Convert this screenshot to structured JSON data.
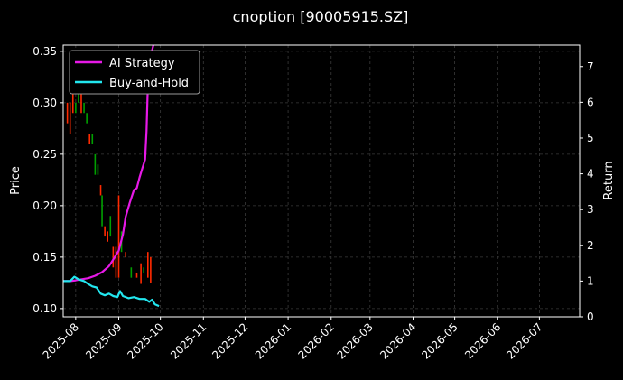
{
  "chart_data": {
    "type": "line",
    "title": "cnoption [90005915.SZ]",
    "ylabel_left": "Price",
    "ylabel_right": "Return",
    "ylim_left": [
      0.092,
      0.356
    ],
    "ylim_right": [
      0,
      7.6
    ],
    "yticks_left": [
      0.1,
      0.15,
      0.2,
      0.25,
      0.3,
      0.35
    ],
    "yticks_left_labels": [
      "0.10",
      "0.15",
      "0.20",
      "0.25",
      "0.30",
      "0.35"
    ],
    "yticks_right": [
      0,
      1,
      2,
      3,
      4,
      5,
      6,
      7
    ],
    "yticks_right_labels": [
      "0",
      "1",
      "2",
      "3",
      "4",
      "5",
      "6",
      "7"
    ],
    "xlim": [
      "2025-07-23",
      "2026-07-30"
    ],
    "xticks": [
      "2025-08-01",
      "2025-09-01",
      "2025-10-01",
      "2025-11-01",
      "2025-12-01",
      "2026-01-01",
      "2026-02-01",
      "2026-03-01",
      "2026-04-01",
      "2026-05-01",
      "2026-06-01",
      "2026-07-01"
    ],
    "xticks_labels": [
      "2025-08",
      "2025-09",
      "2025-10",
      "2025-11",
      "2025-12",
      "2026-01",
      "2026-02",
      "2026-03",
      "2026-04",
      "2026-05",
      "2026-06",
      "2026-07"
    ],
    "grid": true,
    "legend_position": "top-left",
    "colors": {
      "up": "#00a000",
      "down": "#ff2a00",
      "strategy": "#e619e6",
      "buyhold": "#22e6ee",
      "grid": "#3a3a3a",
      "axes": "#ffffff"
    },
    "series": [
      {
        "name": "AI Strategy",
        "axis": "right",
        "points": [
          [
            "2025-07-23",
            1.0
          ],
          [
            "2025-07-28",
            1.0
          ],
          [
            "2025-08-01",
            1.02
          ],
          [
            "2025-08-05",
            1.05
          ],
          [
            "2025-08-10",
            1.08
          ],
          [
            "2025-08-15",
            1.15
          ],
          [
            "2025-08-20",
            1.25
          ],
          [
            "2025-08-25",
            1.42
          ],
          [
            "2025-08-28",
            1.6
          ],
          [
            "2025-09-01",
            1.85
          ],
          [
            "2025-09-04",
            2.3
          ],
          [
            "2025-09-06",
            2.8
          ],
          [
            "2025-09-09",
            3.2
          ],
          [
            "2025-09-12",
            3.55
          ],
          [
            "2025-09-14",
            3.6
          ],
          [
            "2025-09-16",
            3.9
          ],
          [
            "2025-09-18",
            4.15
          ],
          [
            "2025-09-20",
            4.4
          ],
          [
            "2025-09-21",
            5.2
          ],
          [
            "2025-09-22",
            6.5
          ],
          [
            "2025-09-24",
            7.3
          ],
          [
            "2025-09-26",
            7.6
          ]
        ]
      },
      {
        "name": "Buy-and-Hold",
        "axis": "right",
        "points": [
          [
            "2025-07-23",
            1.0
          ],
          [
            "2025-07-28",
            1.0
          ],
          [
            "2025-07-31",
            1.12
          ],
          [
            "2025-08-03",
            1.05
          ],
          [
            "2025-08-07",
            1.0
          ],
          [
            "2025-08-10",
            0.92
          ],
          [
            "2025-08-13",
            0.85
          ],
          [
            "2025-08-16",
            0.82
          ],
          [
            "2025-08-19",
            0.65
          ],
          [
            "2025-08-22",
            0.6
          ],
          [
            "2025-08-25",
            0.65
          ],
          [
            "2025-08-28",
            0.58
          ],
          [
            "2025-08-31",
            0.55
          ],
          [
            "2025-09-02",
            0.72
          ],
          [
            "2025-09-04",
            0.58
          ],
          [
            "2025-09-08",
            0.52
          ],
          [
            "2025-09-12",
            0.55
          ],
          [
            "2025-09-16",
            0.5
          ],
          [
            "2025-09-20",
            0.5
          ],
          [
            "2025-09-23",
            0.42
          ],
          [
            "2025-09-25",
            0.48
          ],
          [
            "2025-09-27",
            0.35
          ],
          [
            "2025-09-30",
            0.3
          ]
        ]
      }
    ],
    "candles": [
      [
        "2025-07-26",
        0.28,
        0.3,
        "down"
      ],
      [
        "2025-07-28",
        0.27,
        0.3,
        "down"
      ],
      [
        "2025-07-30",
        0.29,
        0.31,
        "down"
      ],
      [
        "2025-08-01",
        0.29,
        0.3,
        "up"
      ],
      [
        "2025-08-03",
        0.3,
        0.31,
        "up"
      ],
      [
        "2025-08-05",
        0.29,
        0.31,
        "down"
      ],
      [
        "2025-08-07",
        0.29,
        0.3,
        "up"
      ],
      [
        "2025-08-09",
        0.28,
        0.29,
        "up"
      ],
      [
        "2025-08-11",
        0.26,
        0.27,
        "down"
      ],
      [
        "2025-08-13",
        0.26,
        0.27,
        "up"
      ],
      [
        "2025-08-15",
        0.23,
        0.25,
        "up"
      ],
      [
        "2025-08-17",
        0.23,
        0.24,
        "up"
      ],
      [
        "2025-08-19",
        0.21,
        0.22,
        "down"
      ],
      [
        "2025-08-20",
        0.18,
        0.21,
        "up"
      ],
      [
        "2025-08-22",
        0.17,
        0.18,
        "down"
      ],
      [
        "2025-08-24",
        0.165,
        0.175,
        "down"
      ],
      [
        "2025-08-26",
        0.17,
        0.19,
        "up"
      ],
      [
        "2025-08-28",
        0.14,
        0.16,
        "down"
      ],
      [
        "2025-08-30",
        0.13,
        0.16,
        "down"
      ],
      [
        "2025-09-01",
        0.13,
        0.21,
        "down"
      ],
      [
        "2025-09-03",
        0.155,
        0.175,
        "up"
      ],
      [
        "2025-09-06",
        0.15,
        0.155,
        "down"
      ],
      [
        "2025-09-10",
        0.13,
        0.14,
        "up"
      ],
      [
        "2025-09-14",
        0.13,
        0.135,
        "down"
      ],
      [
        "2025-09-17",
        0.124,
        0.144,
        "down"
      ],
      [
        "2025-09-19",
        0.135,
        0.14,
        "up"
      ],
      [
        "2025-09-22",
        0.13,
        0.155,
        "down"
      ],
      [
        "2025-09-24",
        0.125,
        0.15,
        "down"
      ]
    ]
  }
}
